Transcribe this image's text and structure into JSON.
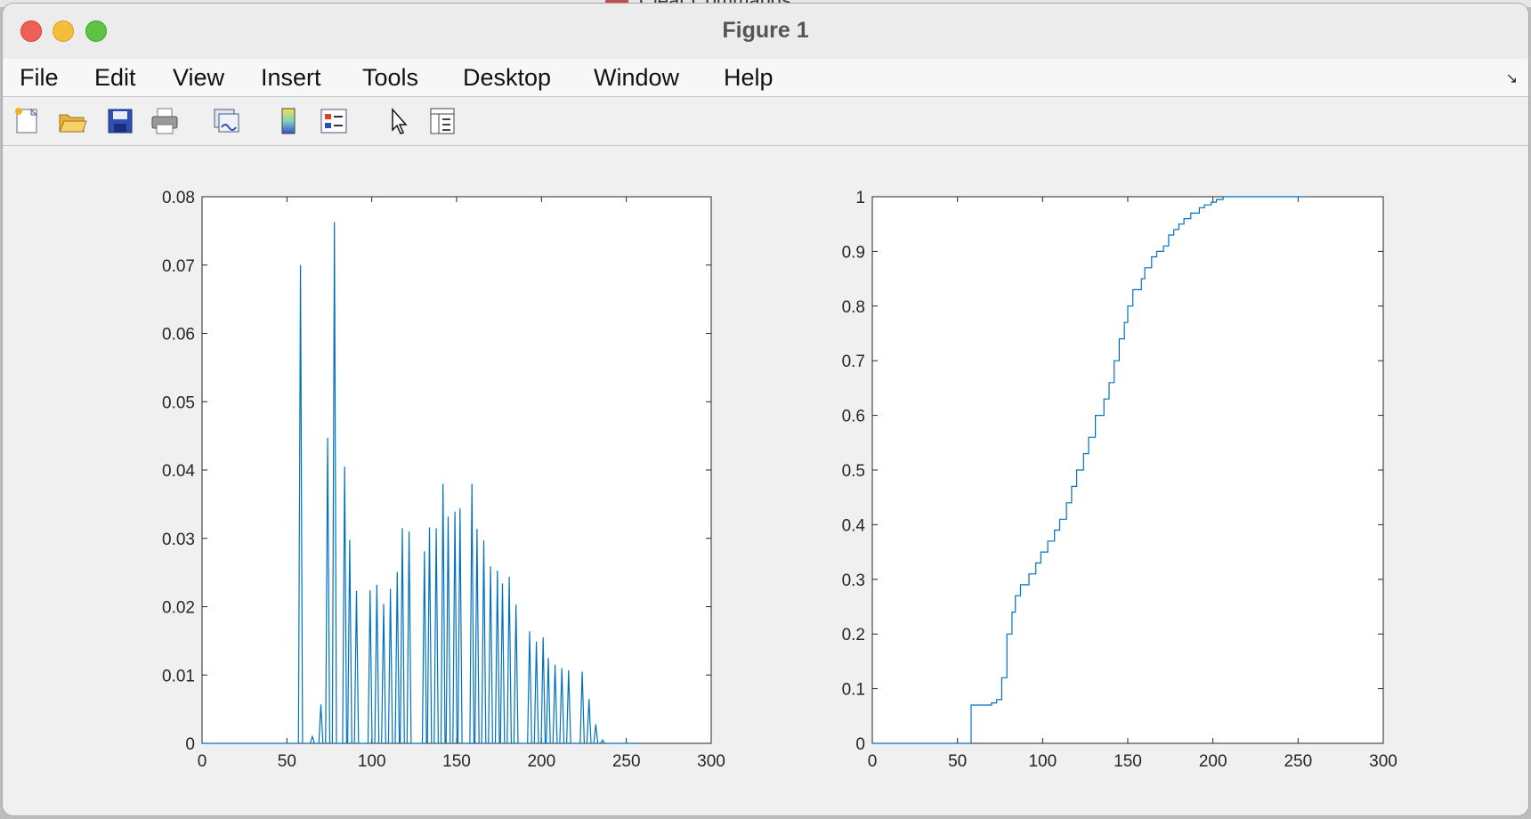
{
  "background": {
    "text": "Clear Commands"
  },
  "window": {
    "title": "Figure 1"
  },
  "menu": [
    "File",
    "Edit",
    "View",
    "Insert",
    "Tools",
    "Desktop",
    "Window",
    "Help"
  ],
  "toolbar": [
    "new-figure-icon",
    "open-file-icon",
    "save-icon",
    "print-icon",
    "link-plot-icon",
    "insert-colorbar-icon",
    "insert-legend-icon",
    "edit-plot-pointer-icon",
    "property-inspector-icon"
  ],
  "colors": {
    "line": "#0072bd",
    "axes_bg": "#ffffff",
    "figure_bg": "#f0f0f0"
  },
  "chart_data": [
    {
      "type": "line",
      "title": "",
      "xlabel": "",
      "ylabel": "",
      "xlim": [
        0,
        300
      ],
      "ylim": [
        0,
        0.08
      ],
      "xticks": [
        "0",
        "50",
        "100",
        "150",
        "200",
        "250",
        "300"
      ],
      "yticks": [
        "0",
        "0.01",
        "0.02",
        "0.03",
        "0.04",
        "0.05",
        "0.06",
        "0.07",
        "0.08"
      ],
      "grid": false,
      "legend": false,
      "series": [
        {
          "x": [
            58,
            62,
            65,
            70,
            74,
            78,
            80,
            84,
            87,
            91,
            95,
            99,
            103,
            107,
            111,
            115,
            118,
            122,
            126,
            131,
            134,
            138,
            142,
            145,
            149,
            152,
            155,
            159,
            162,
            166,
            170,
            174,
            177,
            181,
            185,
            189,
            193,
            197,
            201,
            204,
            208,
            212,
            216,
            220,
            224,
            228,
            232,
            236
          ],
          "y": [
            0.07,
            0.0,
            0.001,
            0.0057,
            0.0447,
            0.0763,
            0.0,
            0.0405,
            0.0298,
            0.0223,
            0.0,
            0.0224,
            0.0232,
            0.0204,
            0.0226,
            0.0251,
            0.0315,
            0.031,
            0.0,
            0.0281,
            0.0316,
            0.0315,
            0.038,
            0.0332,
            0.0339,
            0.0344,
            0.0,
            0.038,
            0.0314,
            0.0297,
            0.0259,
            0.0253,
            0.0234,
            0.0244,
            0.0203,
            0.0,
            0.0164,
            0.0149,
            0.0155,
            0.0125,
            0.0115,
            0.011,
            0.0107,
            0.0,
            0.0105,
            0.0065,
            0.0028,
            0.0005
          ]
        }
      ]
    },
    {
      "type": "line",
      "title": "",
      "xlabel": "",
      "ylabel": "",
      "xlim": [
        0,
        300
      ],
      "ylim": [
        0,
        1
      ],
      "xticks": [
        "0",
        "50",
        "100",
        "150",
        "200",
        "250",
        "300"
      ],
      "yticks": [
        "0",
        "0.1",
        "0.2",
        "0.3",
        "0.4",
        "0.5",
        "0.6",
        "0.7",
        "0.8",
        "0.9",
        "1"
      ],
      "grid": false,
      "legend": false,
      "series": [
        {
          "step": true,
          "x": [
            0,
            58,
            70,
            73,
            76,
            79,
            82,
            84,
            87,
            92,
            96,
            99,
            103,
            107,
            110,
            114,
            117,
            120,
            124,
            127,
            131,
            136,
            139,
            142,
            145,
            148,
            150,
            153,
            158,
            160,
            164,
            167,
            171,
            174,
            177,
            180,
            183,
            187,
            192,
            195,
            199,
            202,
            206,
            209,
            212,
            216,
            220,
            224,
            229,
            234,
            240,
            255
          ],
          "y": [
            0,
            0.07,
            0.074,
            0.08,
            0.12,
            0.2,
            0.24,
            0.27,
            0.29,
            0.31,
            0.33,
            0.35,
            0.37,
            0.39,
            0.41,
            0.44,
            0.47,
            0.5,
            0.53,
            0.56,
            0.6,
            0.63,
            0.66,
            0.7,
            0.74,
            0.77,
            0.8,
            0.83,
            0.85,
            0.87,
            0.89,
            0.9,
            0.91,
            0.93,
            0.94,
            0.95,
            0.96,
            0.97,
            0.98,
            0.985,
            0.99,
            0.995,
            1.0,
            1.0,
            1.0,
            1.0,
            1.0,
            1.0,
            1.0,
            1.0,
            1.0,
            1.0
          ]
        }
      ]
    }
  ]
}
